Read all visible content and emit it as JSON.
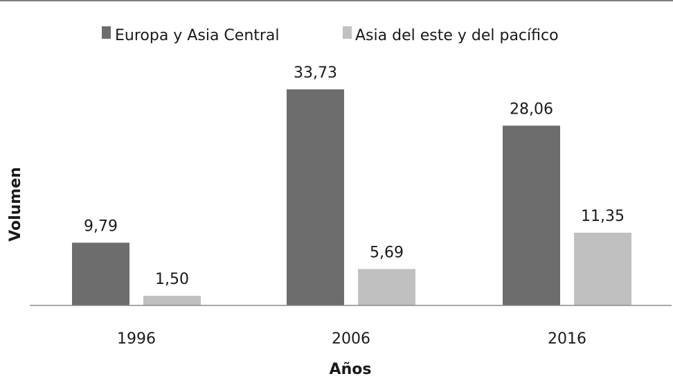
{
  "chart_data": {
    "type": "bar",
    "categories": [
      "1996",
      "2006",
      "2016"
    ],
    "series": [
      {
        "name": "Europa y Asia Central",
        "values": [
          9.79,
          33.73,
          28.06
        ],
        "labels": [
          "9,79",
          "33,73",
          "28,06"
        ],
        "color": "#6d6d6d"
      },
      {
        "name": "Asia del este y del pacífico",
        "values": [
          1.5,
          5.69,
          11.35
        ],
        "labels": [
          "1,50",
          "5,69",
          "11,35"
        ],
        "color": "#c0c0c0"
      }
    ],
    "xlabel": "Años",
    "ylabel": "Volumen",
    "ylim": [
      0,
      33.73
    ],
    "legend_position": "top",
    "grid": false
  }
}
